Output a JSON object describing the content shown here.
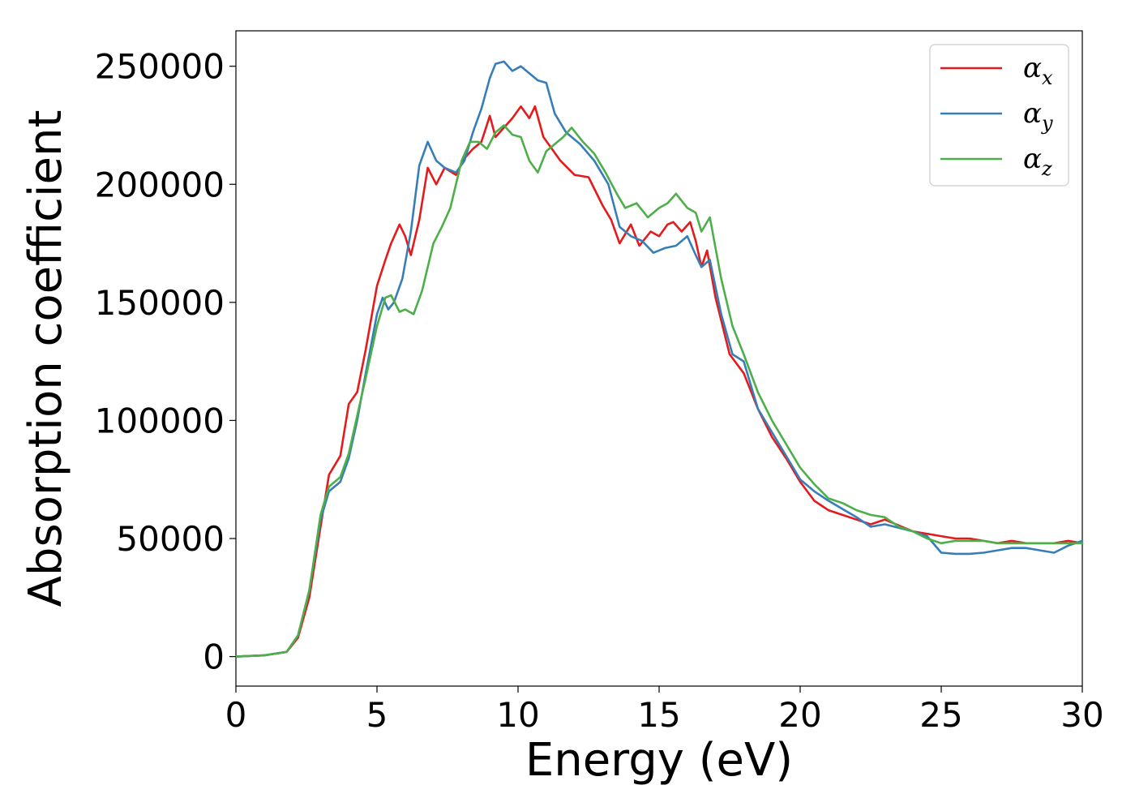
{
  "chart_data": {
    "type": "line",
    "title": "",
    "xlabel": "Energy (eV)",
    "ylabel": "Absorption coefficient",
    "xlim": [
      0,
      30
    ],
    "ylim": [
      -12500,
      265000
    ],
    "xticks": [
      0,
      5,
      10,
      15,
      20,
      25,
      30
    ],
    "xtick_labels": [
      "0",
      "5",
      "10",
      "15",
      "20",
      "25",
      "30"
    ],
    "yticks": [
      0,
      50000,
      100000,
      150000,
      200000,
      250000
    ],
    "ytick_labels": [
      "0",
      "50000",
      "100000",
      "150000",
      "200000",
      "250000"
    ],
    "grid": false,
    "legend_position": "top-right",
    "series": [
      {
        "name": "α_x",
        "symbol": "α",
        "subscript": "x",
        "color": "#e41a1c",
        "x": [
          0,
          1,
          1.8,
          2.2,
          2.6,
          3.0,
          3.3,
          3.7,
          4.0,
          4.3,
          4.6,
          5.0,
          5.3,
          5.5,
          5.8,
          6.0,
          6.2,
          6.5,
          6.8,
          7.1,
          7.4,
          7.8,
          8.1,
          8.4,
          8.7,
          9.0,
          9.2,
          9.5,
          9.8,
          10.1,
          10.4,
          10.6,
          10.9,
          11.2,
          11.5,
          12.0,
          12.5,
          13.0,
          13.3,
          13.6,
          14.0,
          14.3,
          14.7,
          15.0,
          15.3,
          15.5,
          15.8,
          16.1,
          16.3,
          16.5,
          16.7,
          17.0,
          17.5,
          18.0,
          18.5,
          19.0,
          19.5,
          20.0,
          20.5,
          21.0,
          22.0,
          22.5,
          23.0,
          24.0,
          25.0,
          25.5,
          26.0,
          26.5,
          27.0,
          27.5,
          28.0,
          28.5,
          29.0,
          29.5,
          30.0
        ],
        "values": [
          0,
          500,
          2000,
          8000,
          25000,
          55000,
          77000,
          85000,
          107000,
          112000,
          130000,
          157000,
          168000,
          175000,
          183000,
          178000,
          170000,
          185000,
          207000,
          200000,
          207000,
          204000,
          211000,
          215000,
          218000,
          229000,
          220000,
          224000,
          228000,
          233000,
          228000,
          233000,
          220000,
          215000,
          210000,
          204000,
          203000,
          191000,
          185000,
          175000,
          183000,
          174000,
          180000,
          178000,
          183000,
          184000,
          180000,
          184000,
          176000,
          165000,
          172000,
          152000,
          128000,
          120000,
          105000,
          93000,
          84000,
          74000,
          66000,
          62000,
          58000,
          56000,
          58000,
          53000,
          51000,
          50000,
          50000,
          49000,
          48000,
          49000,
          48000,
          48000,
          48000,
          49000,
          48000
        ]
      },
      {
        "name": "α_y",
        "symbol": "α",
        "subscript": "y",
        "color": "#377eb8",
        "x": [
          0,
          1,
          1.8,
          2.2,
          2.6,
          3.0,
          3.3,
          3.7,
          4.0,
          4.3,
          4.6,
          5.0,
          5.2,
          5.4,
          5.6,
          5.9,
          6.2,
          6.5,
          6.8,
          7.1,
          7.4,
          7.8,
          8.1,
          8.4,
          8.7,
          9.0,
          9.2,
          9.5,
          9.8,
          10.1,
          10.4,
          10.7,
          11.0,
          11.3,
          11.7,
          12.2,
          12.7,
          13.2,
          13.6,
          14.0,
          14.4,
          14.8,
          15.2,
          15.6,
          16.0,
          16.3,
          16.5,
          16.8,
          17.2,
          17.6,
          18.0,
          18.5,
          19.0,
          19.5,
          20.0,
          20.5,
          21.0,
          22.0,
          22.5,
          23.0,
          24.0,
          24.5,
          25.0,
          25.5,
          26.0,
          26.5,
          27.0,
          27.5,
          28.0,
          28.5,
          29.0,
          29.5,
          30.0
        ],
        "values": [
          0,
          500,
          2000,
          9000,
          28000,
          58000,
          70000,
          74000,
          84000,
          100000,
          120000,
          145000,
          152000,
          147000,
          150000,
          160000,
          180000,
          208000,
          218000,
          210000,
          207000,
          205000,
          210000,
          222000,
          232000,
          245000,
          251000,
          252000,
          248000,
          250000,
          247000,
          244000,
          243000,
          230000,
          222000,
          217000,
          210000,
          200000,
          182000,
          178000,
          176000,
          171000,
          173000,
          174000,
          178000,
          170000,
          165000,
          168000,
          145000,
          128000,
          125000,
          105000,
          95000,
          85000,
          75000,
          70000,
          66000,
          59000,
          55000,
          56000,
          53000,
          51000,
          44000,
          43500,
          43500,
          44000,
          45000,
          46000,
          46000,
          45000,
          44000,
          47000,
          49000
        ]
      },
      {
        "name": "α_z",
        "symbol": "α",
        "subscript": "z",
        "color": "#4daf4a",
        "x": [
          0,
          1,
          1.8,
          2.2,
          2.6,
          3.0,
          3.3,
          3.7,
          4.0,
          4.3,
          4.6,
          5.0,
          5.3,
          5.5,
          5.8,
          6.0,
          6.3,
          6.6,
          7.0,
          7.3,
          7.6,
          8.0,
          8.3,
          8.6,
          8.9,
          9.2,
          9.5,
          9.8,
          10.1,
          10.4,
          10.7,
          11.0,
          11.3,
          11.6,
          11.9,
          12.3,
          12.7,
          13.1,
          13.5,
          13.8,
          14.2,
          14.6,
          15.0,
          15.3,
          15.6,
          16.0,
          16.3,
          16.5,
          16.8,
          17.2,
          17.6,
          18.0,
          18.5,
          19.0,
          19.5,
          20.0,
          20.5,
          21.0,
          21.5,
          22.0,
          22.5,
          23.0,
          23.5,
          24.0,
          24.5,
          25.0,
          25.5,
          26.0,
          26.5,
          27.0,
          27.5,
          28.0,
          28.5,
          29.0,
          29.5,
          30.0
        ],
        "values": [
          0,
          500,
          2000,
          9000,
          28000,
          60000,
          72000,
          76000,
          86000,
          102000,
          118000,
          140000,
          152000,
          153000,
          146000,
          147000,
          145000,
          155000,
          175000,
          182000,
          190000,
          210000,
          218000,
          218000,
          215000,
          222000,
          225000,
          221000,
          220000,
          210000,
          205000,
          214000,
          217000,
          220000,
          224000,
          218000,
          213000,
          205000,
          196000,
          190000,
          192000,
          186000,
          190000,
          192000,
          196000,
          190000,
          188000,
          180000,
          186000,
          160000,
          140000,
          128000,
          112000,
          100000,
          90000,
          80000,
          73000,
          67000,
          65000,
          62000,
          60000,
          59000,
          55000,
          53000,
          50000,
          48000,
          49000,
          49000,
          49000,
          48000,
          48000,
          48000,
          48000,
          48000,
          48000,
          48000
        ]
      }
    ]
  }
}
